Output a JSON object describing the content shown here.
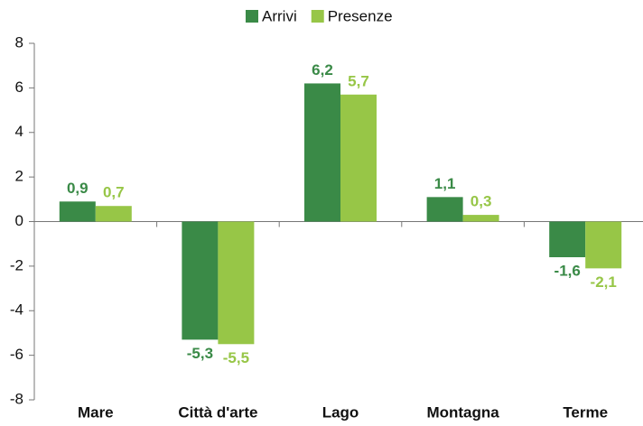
{
  "chart_data": {
    "type": "bar",
    "categories": [
      "Mare",
      "Città d'arte",
      "Lago",
      "Montagna",
      "Terme"
    ],
    "series": [
      {
        "name": "Arrivi",
        "color": "#3a8a47",
        "values": [
          0.9,
          -5.3,
          6.2,
          1.1,
          -1.6
        ],
        "value_labels": [
          "0,9",
          "-5,3",
          "6,2",
          "1,1",
          "-1,6"
        ]
      },
      {
        "name": "Presenze",
        "color": "#97c647",
        "values": [
          0.7,
          -5.5,
          5.7,
          0.3,
          -2.1
        ],
        "value_labels": [
          "0,7",
          "-5,5",
          "5,7",
          "0,3",
          "-2,1"
        ]
      }
    ],
    "ylim": [
      -8,
      8
    ],
    "yticks": [
      -8,
      -6,
      -4,
      -2,
      0,
      2,
      4,
      6,
      8
    ],
    "grid": false,
    "legend": "top"
  }
}
